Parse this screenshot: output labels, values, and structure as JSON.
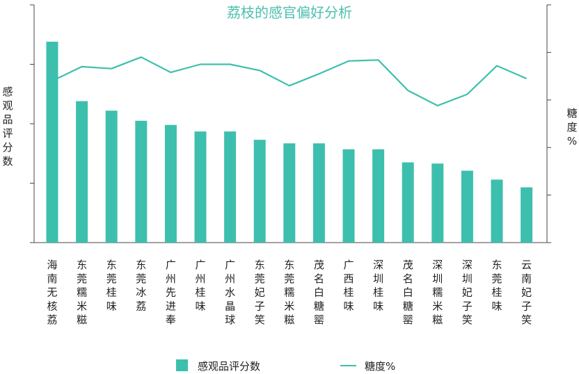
{
  "chart_data": {
    "type": "bar+line",
    "title": "荔枝的感官偏好分析",
    "ylabel_left": "感观品评分数",
    "ylabel_right": "糖度%",
    "categories": [
      "海南无核荔",
      "东莞糯米糍",
      "东莞桂味",
      "东莞冰荔",
      "广州先进奉",
      "广州桂味",
      "广州水晶球",
      "东莞妃子笑",
      "东莞糯米糍",
      "茂名白糖罂",
      "广西桂味",
      "深圳桂味",
      "茂名白糖罂",
      "深圳糯米糍",
      "深圳妃子笑",
      "东莞桂味",
      "云南妃子笑"
    ],
    "series": [
      {
        "name": "感观品评分数",
        "type": "bar",
        "color": "#3dbfae",
        "axis": "left",
        "values": [
          3.38,
          2.38,
          2.22,
          2.05,
          1.98,
          1.87,
          1.87,
          1.73,
          1.67,
          1.67,
          1.57,
          1.57,
          1.35,
          1.33,
          1.21,
          1.06,
          0.93
        ]
      },
      {
        "name": "糖度%",
        "type": "line",
        "color": "#3dbfae",
        "axis": "right",
        "values": [
          3.4,
          3.7,
          3.66,
          3.9,
          3.58,
          3.75,
          3.75,
          3.62,
          3.3,
          3.55,
          3.82,
          3.84,
          3.2,
          2.88,
          3.12,
          3.72,
          3.45
        ]
      }
    ],
    "ylim_left": [
      0,
      4
    ],
    "ylim_right": [
      0,
      5
    ],
    "legend": {
      "position": "bottom",
      "items": [
        {
          "label": "感观品评分数",
          "marker": "bar"
        },
        {
          "label": "糖度%",
          "marker": "line"
        }
      ]
    },
    "grid": false
  }
}
